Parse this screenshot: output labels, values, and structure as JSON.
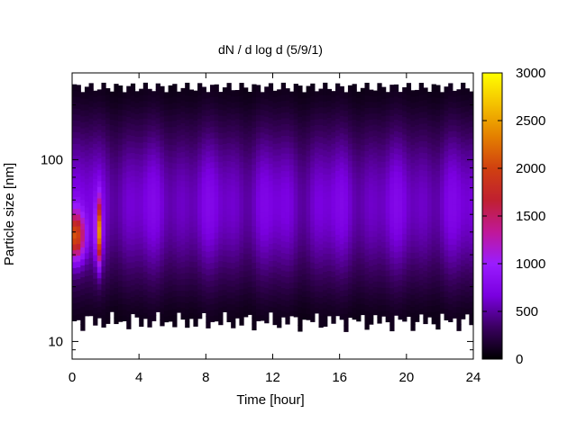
{
  "chart_data": {
    "type": "heatmap",
    "title": "dN / d log d (5/9/1)",
    "xlabel": "Time [hour]",
    "ylabel": "Particle size [nm]",
    "xlim": [
      0,
      24
    ],
    "ylim": [
      8,
      300
    ],
    "yscale": "log",
    "xticks": [
      0,
      4,
      8,
      12,
      16,
      20,
      24
    ],
    "yticks": [
      10,
      100
    ],
    "colorbar": {
      "min": 0,
      "max": 3000,
      "ticks": [
        0,
        500,
        1000,
        1500,
        2000,
        2500,
        3000
      ],
      "colormap": [
        "#000000",
        "#3a0060",
        "#7a00e0",
        "#9a1cff",
        "#c01898",
        "#c02030",
        "#d04010",
        "#e48000",
        "#f4c000",
        "#ffff00"
      ]
    },
    "size_range_nm": [
      13,
      250
    ],
    "peak": {
      "time_hour": 1.6,
      "size_nm": 40,
      "value": 1800
    },
    "early_hours": {
      "time_hour": 0.2,
      "size_nm": 38,
      "value": 1500
    },
    "typical_mid_size_value": 700,
    "typical_edge_value": 100
  }
}
